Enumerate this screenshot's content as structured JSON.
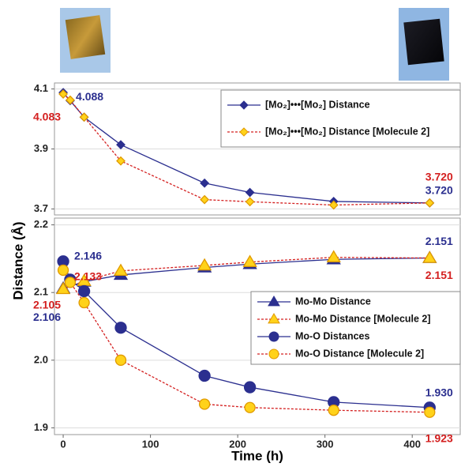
{
  "chart_data": [
    {
      "type": "line",
      "ylabel": "Distance (Å)",
      "xlim": [
        -10,
        455
      ],
      "ylim": [
        3.68,
        4.12
      ],
      "yticks": [
        3.7,
        3.9,
        4.1
      ],
      "grid": true,
      "legend": "upper right",
      "series": [
        {
          "name": "[Mo₂]•••[Mo₂] Distance",
          "color": "#2b2f8f",
          "marker": "diamond",
          "marker_fill": "#2b2f8f",
          "marker_edge": "#2b2f8f",
          "linestyle": "solid",
          "x": [
            0,
            8,
            24,
            66,
            162,
            214,
            310,
            420
          ],
          "values": [
            4.088,
            4.061,
            4.006,
            3.914,
            3.786,
            3.755,
            3.725,
            3.72
          ],
          "value_labels": [
            "4.088",
            null,
            null,
            null,
            null,
            null,
            null,
            "3.720"
          ]
        },
        {
          "name": "[Mo₂]•••[Mo₂] Distance [Molecule 2]",
          "color": "#d42020",
          "marker": "diamond",
          "marker_fill": "#ffd21a",
          "marker_edge": "#e09a00",
          "linestyle": "dotted",
          "x": [
            0,
            8,
            24,
            66,
            162,
            214,
            310,
            420
          ],
          "values": [
            4.083,
            4.063,
            4.006,
            3.86,
            3.731,
            3.724,
            3.713,
            3.72
          ],
          "value_labels": [
            "4.083",
            null,
            null,
            null,
            null,
            null,
            null,
            "3.720"
          ]
        }
      ]
    },
    {
      "type": "line",
      "xlabel": "Time (h)",
      "xlim": [
        -10,
        455
      ],
      "ylim": [
        1.89,
        2.21
      ],
      "xticks": [
        0,
        100,
        200,
        300,
        400
      ],
      "yticks": [
        1.9,
        {
          "value": 2,
          "label": "2.0"
        },
        2.1,
        2.2
      ],
      "grid": true,
      "legend": "center right",
      "series": [
        {
          "name": "Mo-Mo Distance",
          "color": "#2b2f8f",
          "marker": "triangle",
          "marker_fill": "#2b2f8f",
          "marker_edge": "#2b2f8f",
          "linestyle": "solid",
          "x": [
            0,
            24,
            66,
            162,
            214,
            310,
            420
          ],
          "values": [
            2.106,
            2.116,
            2.126,
            2.137,
            2.142,
            2.149,
            2.151
          ],
          "value_labels": [
            "2.106",
            null,
            null,
            null,
            null,
            null,
            "2.151"
          ]
        },
        {
          "name": "Mo-Mo Distance [Molecule 2]",
          "color": "#d42020",
          "marker": "triangle",
          "marker_fill": "#ffd21a",
          "marker_edge": "#e09a00",
          "linestyle": "dotted",
          "x": [
            0,
            24,
            66,
            162,
            214,
            310,
            420
          ],
          "values": [
            2.105,
            2.117,
            2.132,
            2.14,
            2.145,
            2.152,
            2.151
          ],
          "value_labels": [
            "2.105",
            null,
            null,
            null,
            null,
            null,
            "2.151"
          ]
        },
        {
          "name": "Mo-O Distances",
          "color": "#2b2f8f",
          "marker": "circle",
          "marker_fill": "#2b2f8f",
          "marker_edge": "#2b2f8f",
          "linestyle": "solid",
          "x": [
            0,
            8,
            24,
            66,
            162,
            214,
            310,
            420
          ],
          "values": [
            2.146,
            2.119,
            2.102,
            2.048,
            1.977,
            1.96,
            1.938,
            1.93
          ],
          "value_labels": [
            "2.146",
            null,
            null,
            null,
            null,
            null,
            null,
            "1.930"
          ]
        },
        {
          "name": "Mo-O Distance [Molecule 2]",
          "color": "#d42020",
          "marker": "circle",
          "marker_fill": "#ffd21a",
          "marker_edge": "#e09a00",
          "linestyle": "dotted",
          "x": [
            0,
            8,
            24,
            66,
            162,
            214,
            310,
            420
          ],
          "values": [
            2.133,
            2.115,
            2.085,
            2.0,
            1.935,
            1.93,
            1.926,
            1.923
          ],
          "value_labels": [
            "2.133",
            null,
            null,
            null,
            null,
            null,
            null,
            "1.923"
          ]
        }
      ]
    }
  ]
}
